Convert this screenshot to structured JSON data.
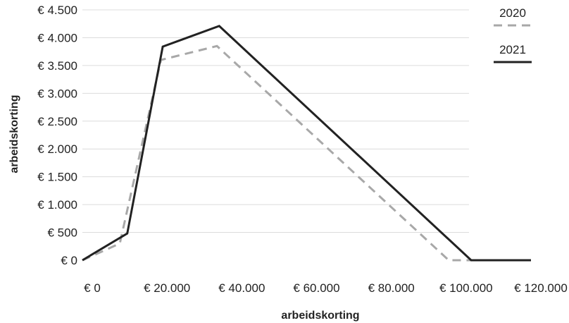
{
  "chart_data": {
    "type": "line",
    "title": "",
    "xlabel": "arbeidskorting",
    "ylabel": "arbeidskorting",
    "xlim": [
      0,
      120000
    ],
    "ylim": [
      0,
      4500
    ],
    "x_ticks": [
      0,
      20000,
      40000,
      60000,
      80000,
      100000,
      120000
    ],
    "x_tick_labels": [
      "€ 0",
      "€ 20.000",
      "€ 40.000",
      "€ 60.000",
      "€ 80.000",
      "€ 100.000",
      "€ 120.000"
    ],
    "y_ticks": [
      0,
      500,
      1000,
      1500,
      2000,
      2500,
      3000,
      3500,
      4000,
      4500
    ],
    "y_tick_labels": [
      "€ 0",
      "€ 500",
      "€ 1.000",
      "€ 1.500",
      "€ 2.000",
      "€ 2.500",
      "€ 3.000",
      "€ 3.500",
      "€ 4.000",
      "€ 4.500"
    ],
    "grid": "horizontal",
    "legend_position": "top-right",
    "series": [
      {
        "name": "2020",
        "style": "dashed",
        "color": "#a8a8a8",
        "x": [
          0,
          10000,
          21000,
          36000,
          98000,
          120000
        ],
        "y": [
          0,
          300,
          3600,
          3850,
          0,
          0
        ]
      },
      {
        "name": "2021",
        "style": "solid",
        "color": "#222222",
        "x": [
          0,
          12000,
          21500,
          36600,
          104000,
          120000
        ],
        "y": [
          0,
          480,
          3840,
          4210,
          0,
          0
        ]
      }
    ]
  }
}
